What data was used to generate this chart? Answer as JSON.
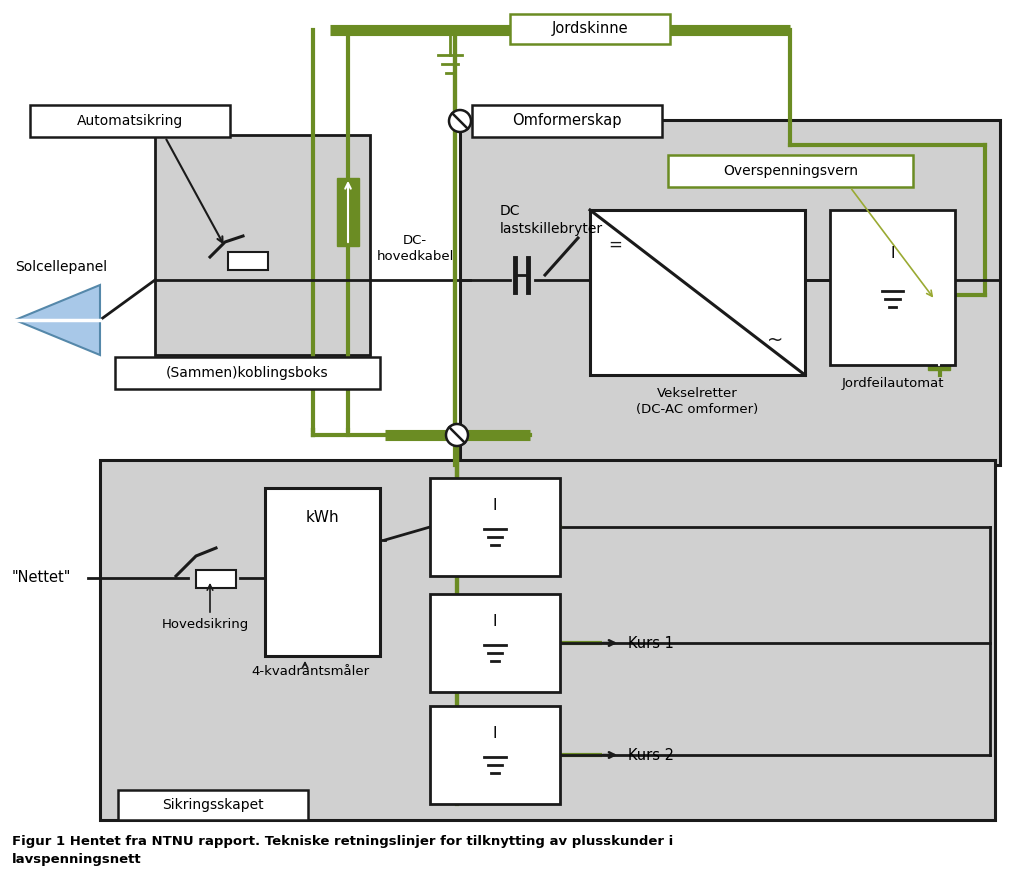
{
  "bg_color": "#ffffff",
  "gray_color": "#d0d0d0",
  "green_color": "#6b8c23",
  "black_color": "#1a1a1a",
  "labels": {
    "jordskinne": "Jordskinne",
    "omformerskap": "Omformerskap",
    "overspenningsvern": "Overspenningsvern",
    "automatsikring": "Automatsikring",
    "solcellepanel": "Solcellepanel",
    "sammenkoblingsboks": "(Sammen)koblingsboks",
    "dc_hoved": "DC-\nhovedkabel",
    "dc_last": "DC\nlastskillebryter",
    "vekselretter": "Vekselretter\n(DC-AC omformer)",
    "jordfeilautomat": "Jordfeilautomat",
    "nettet": "\"Nettet\"",
    "kwh": "kWh",
    "hovedsikring": "Hovedsikring",
    "firkv": "4-kvadrantsmåler",
    "sikringsskapet": "Sikringsskapet",
    "kurs1": "Kurs 1",
    "kurs2": "Kurs 2",
    "caption": "Figur 1 Hentet fra NTNU rapport. Tekniske retningslinjer for tilknytting av plusskunder i\nlavspenningsnett"
  }
}
